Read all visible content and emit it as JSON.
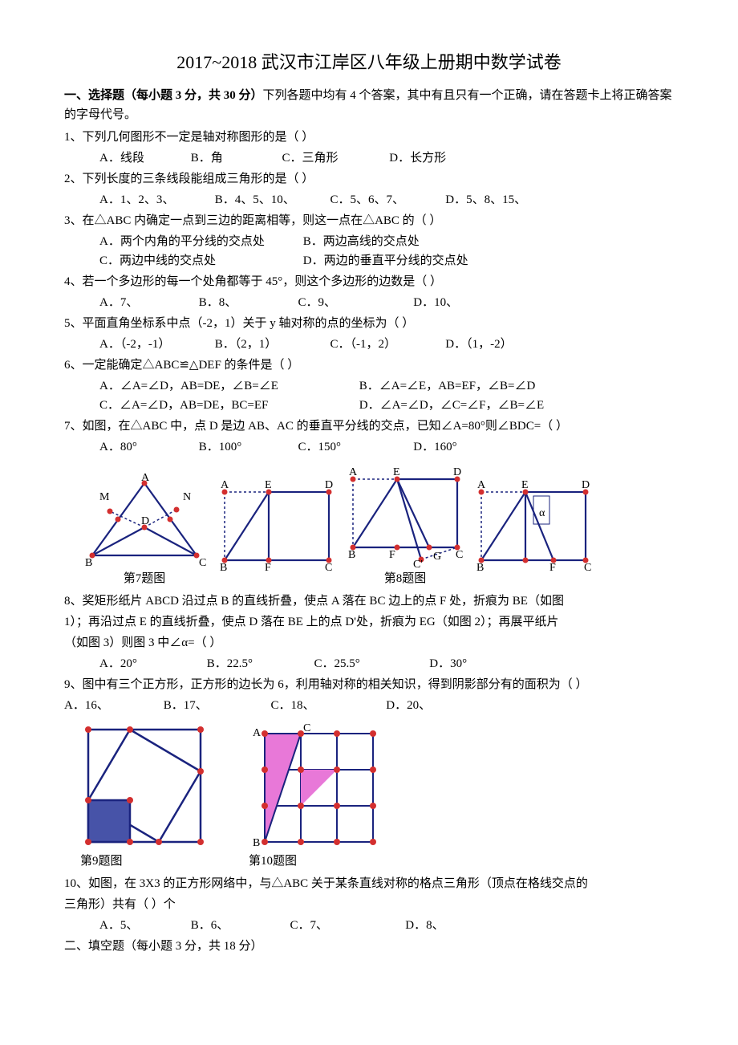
{
  "title": "2017~2018 武汉市江岸区八年级上册期中数学试卷",
  "section1": {
    "heading_bold": "一、选择题（每小题 3 分，共 30 分）",
    "heading_rest": "下列各题中均有 4 个答案，其中有且只有一个正确，请在答题卡上将正确答案的字母代号。"
  },
  "q1": {
    "text": "1、下列几何图形不一定是轴对称图形的是（    ）",
    "A": "A．线段",
    "B": "B．角",
    "C": "C．三角形",
    "D": "D．长方形",
    "wA": 110,
    "wB": 110,
    "wC": 130,
    "wD": 130
  },
  "q2": {
    "text": "2、下列长度的三条线段能组成三角形的是（       ）",
    "A": "A．1、2、3、",
    "B": "B．4、5、10、",
    "C": "C．5、6、7、",
    "D": "D．5、8、15、",
    "wA": 140,
    "wB": 140,
    "wC": 140,
    "wD": 140
  },
  "q3": {
    "text": "3、在△ABC 内确定一点到三边的距离相等，则这一点在△ABC 的（       ）",
    "A": "A．两个内角的平分线的交点处",
    "B": "B．两边高线的交点处",
    "C": "C．两边中线的交点处",
    "D": "D．两边的垂直平分线的交点处",
    "wA": 250,
    "wB": 250,
    "wC": 250,
    "wD": 250
  },
  "q4": {
    "text": "4、若一个多边形的每一个处角都等于 45°，则这个多边形的边数是（    ）",
    "A": "A．7、",
    "B": "B．8、",
    "C": "C．9、",
    "D": "D．10、",
    "wA": 120,
    "wB": 120,
    "wC": 140,
    "wD": 120
  },
  "q5": {
    "text": "5、平面直角坐标系中点（-2，1）关于 y 轴对称的点的坐标为（        ）",
    "A": "A．（-2，-1）",
    "B": "B．（2，1）",
    "C": "C．（-1，2）",
    "D": "D．（1，-2）",
    "wA": 140,
    "wB": 140,
    "wC": 140,
    "wD": 140
  },
  "q6": {
    "text": "6、一定能确定△ABC≌△DEF 的条件是（        ）",
    "A": "A．∠A=∠D，AB=DE，∠B=∠E",
    "B": "B．∠A=∠E，AB=EF，∠B=∠D",
    "C": "C．∠A=∠D，AB=DE，BC=EF",
    "D": "D．∠A=∠D，∠C=∠F，∠B=∠E",
    "wA": 320,
    "wB": 320,
    "wC": 320,
    "wD": 320
  },
  "q7": {
    "text": "7、如图，在△ABC 中，点 D 是边 AB、AC 的垂直平分线的交点，已知∠A=80°则∠BDC=（      ）",
    "A": "A．80°",
    "B": "B．100°",
    "C": "C．150°",
    "D": "D．160°",
    "wA": 120,
    "wB": 120,
    "wC": 140,
    "wD": 120
  },
  "fig7cap": "第7题图",
  "fig8cap": "第8题图",
  "q8": {
    "l1": "8、奖矩形纸片 ABCD 沿过点 B 的直线折叠，使点 A 落在 BC 边上的点 F 处，折痕为 BE（如图",
    "l2": "1）；再沿过点 E 的直线折叠，使点 D 落在 BE 上的点 D'处，折痕为 EG（如图 2）；再展平纸片",
    "l3": "（如图 3）则图 3 中∠α=（        ）",
    "A": "A．20°",
    "B": "B．22.5°",
    "C": "C．25.5°",
    "D": "D．30°",
    "wA": 130,
    "wB": 130,
    "wC": 140,
    "wD": 120
  },
  "q9": {
    "text": "9、图中有三个正方形，正方形的边长为 6，利用轴对称的相关知识，得到阴影部分有的面积为（     ）",
    "A": "A．16、",
    "B": "B．17、",
    "C": "C．18、",
    "D": "D．20、",
    "wA": 120,
    "wB": 130,
    "wC": 140,
    "wD": 120
  },
  "fig9cap": "第9题图",
  "fig10cap": "第10题图",
  "q10": {
    "l1": "10、如图，在 3X3 的正方形网络中，与△ABC 关于某条直线对称的格点三角形（顶点在格线交点的",
    "l2": "三角形）共有（    ）个",
    "A": "A．5、",
    "B": "B．6、",
    "C": "C．7、",
    "D": "D．8、",
    "wA": 110,
    "wB": 120,
    "wC": 140,
    "wD": 120
  },
  "section2": "二、填空题（每小题 3 分，共 18 分）",
  "colors": {
    "stroke": "#1a237e",
    "strokeDark": "#000080",
    "dot": "#d32f2f",
    "dash": "#1a237e",
    "fillBlue": "#4753a8",
    "fillPink": "#e878d8",
    "grid": "#1a237e"
  }
}
